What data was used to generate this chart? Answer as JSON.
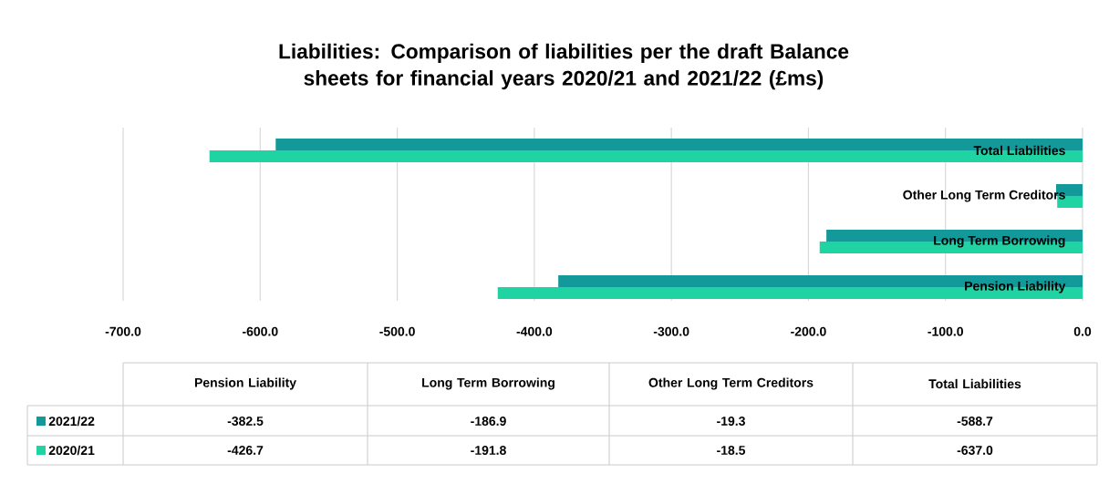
{
  "chart_data": {
    "type": "bar",
    "orientation": "horizontal",
    "title": "Liabilities:  Comparison of liabilities per the draft Balance sheets for financial years 2020/21 and 2021/22 (£ms)",
    "categories": [
      "Total Liabilities",
      "Other Long Term Creditors",
      "Long Term Borrowing",
      "Pension Liability"
    ],
    "series": [
      {
        "name": "2021/22",
        "color": "#13999a",
        "values": [
          -588.7,
          -19.3,
          -186.9,
          -382.5
        ]
      },
      {
        "name": "2020/21",
        "color": "#1fd3a2",
        "values": [
          -637.0,
          -18.5,
          -191.8,
          -426.7
        ]
      }
    ],
    "annotations": [
      "-382.5",
      "-186.9",
      "-19.3",
      "-588.7",
      "-426.7",
      "-191.8",
      "-18.5",
      "-637.0"
    ],
    "xlim": [
      -700,
      0
    ],
    "xticks": [
      {
        "value": -700,
        "label": "-700.0"
      },
      {
        "value": -600,
        "label": "-600.0"
      },
      {
        "value": -500,
        "label": "-500.0"
      },
      {
        "value": -400,
        "label": "-400.0"
      },
      {
        "value": -300,
        "label": "-300.0"
      },
      {
        "value": -200,
        "label": "-200.0"
      },
      {
        "value": -100,
        "label": "-100.0"
      },
      {
        "value": 0,
        "label": "0.0"
      }
    ],
    "grid": "x",
    "legend": "bottom"
  }
}
